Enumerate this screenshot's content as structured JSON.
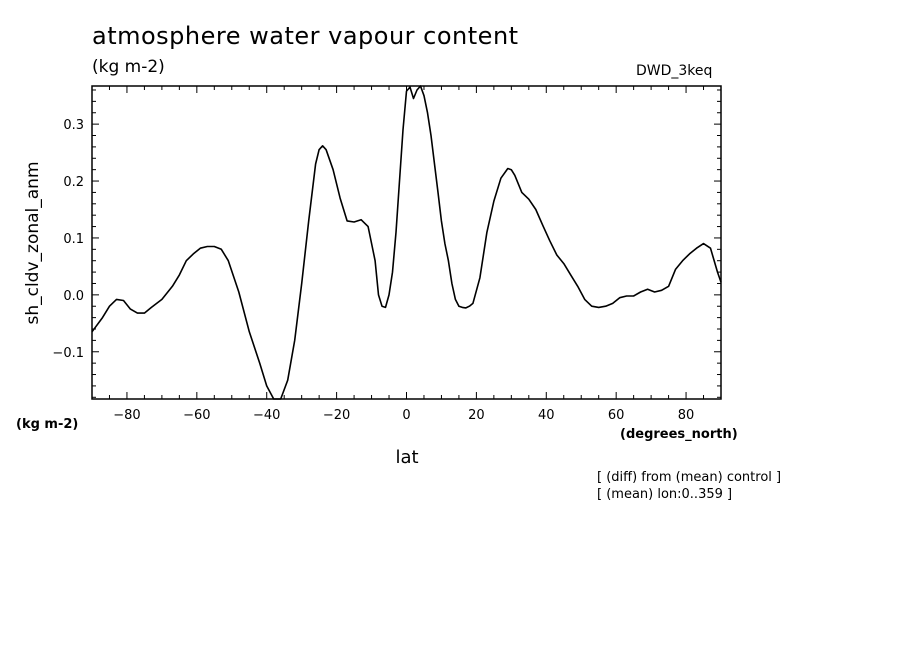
{
  "header": {
    "title": "atmosphere water vapour content",
    "units": "(kg m-2)",
    "model": "DWD_3keq"
  },
  "footer": {
    "units_left": "(kg m-2)",
    "x_units": "(degrees_north)",
    "note1": "[ (diff) from (mean) control ]",
    "note2": "[ (mean) lon:0..359 ]"
  },
  "chart_data": {
    "type": "line",
    "title": "atmosphere water vapour content",
    "xlabel": "lat",
    "ylabel": "sh_cldv_zonal_anm",
    "xlim": [
      -90,
      90
    ],
    "ylim": [
      -0.183,
      0.367
    ],
    "x_ticks": [
      -80,
      -60,
      -40,
      -20,
      0,
      20,
      40,
      60,
      80
    ],
    "y_ticks": [
      -0.1,
      0.0,
      0.1,
      0.2,
      0.3
    ],
    "x_tick_labels": [
      "-80",
      "-60",
      "-40",
      "-20",
      "0",
      "20",
      "40",
      "60",
      "80"
    ],
    "y_tick_labels": [
      "-0.1",
      "0.0",
      "0.1",
      "0.2",
      "0.3"
    ],
    "grid": false,
    "line_color": "#000000",
    "series": [
      {
        "x": [
          -90,
          -87,
          -85,
          -83,
          -81,
          -79,
          -77,
          -75,
          -73,
          -70,
          -67,
          -65,
          -63,
          -61,
          -59,
          -57,
          -55,
          -53,
          -51,
          -48,
          -45,
          -42,
          -40,
          -38,
          -36,
          -34,
          -32,
          -30,
          -28,
          -26,
          -25,
          -24,
          -23,
          -21,
          -19,
          -17,
          -15,
          -13,
          -11,
          -10,
          -9,
          -8,
          -7,
          -6,
          -5,
          -4,
          -3,
          -2,
          -1,
          0,
          1,
          2,
          3,
          4,
          5,
          6,
          7,
          8,
          9,
          10,
          11,
          12,
          13,
          14,
          15,
          16,
          17,
          18,
          19,
          21,
          23,
          25,
          27,
          29,
          30,
          31,
          33,
          35,
          37,
          39,
          41,
          43,
          45,
          47,
          49,
          51,
          53,
          55,
          57,
          59,
          61,
          63,
          65,
          67,
          69,
          71,
          73,
          75,
          77,
          79,
          81,
          83,
          85,
          87,
          89,
          90
        ],
        "y": [
          -0.065,
          -0.04,
          -0.02,
          -0.008,
          -0.01,
          -0.025,
          -0.032,
          -0.032,
          -0.022,
          -0.008,
          0.015,
          0.035,
          0.06,
          0.072,
          0.082,
          0.085,
          0.085,
          0.08,
          0.06,
          0.005,
          -0.065,
          -0.12,
          -0.16,
          -0.185,
          -0.183,
          -0.15,
          -0.08,
          0.02,
          0.13,
          0.23,
          0.255,
          0.262,
          0.255,
          0.22,
          0.17,
          0.13,
          0.128,
          0.132,
          0.12,
          0.09,
          0.06,
          0.0,
          -0.02,
          -0.022,
          0.0,
          0.04,
          0.11,
          0.2,
          0.29,
          0.358,
          0.365,
          0.345,
          0.36,
          0.368,
          0.35,
          0.32,
          0.28,
          0.23,
          0.18,
          0.13,
          0.09,
          0.06,
          0.02,
          -0.008,
          -0.02,
          -0.022,
          -0.023,
          -0.02,
          -0.015,
          0.03,
          0.11,
          0.165,
          0.205,
          0.222,
          0.22,
          0.21,
          0.18,
          0.168,
          0.15,
          0.122,
          0.095,
          0.07,
          0.055,
          0.035,
          0.015,
          -0.008,
          -0.02,
          -0.022,
          -0.02,
          -0.015,
          -0.005,
          -0.002,
          -0.002,
          0.005,
          0.01,
          0.005,
          0.008,
          0.015,
          0.045,
          0.06,
          0.072,
          0.082,
          0.09,
          0.082,
          0.04,
          0.022
        ]
      }
    ]
  }
}
